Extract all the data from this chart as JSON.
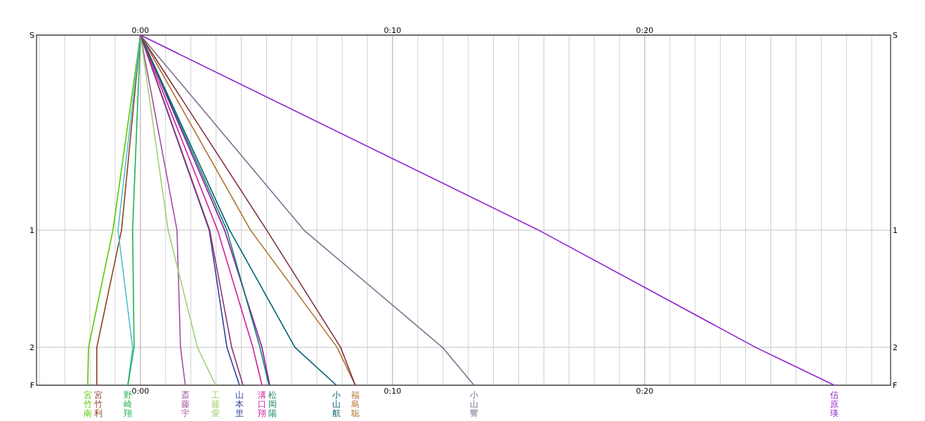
{
  "chart_data": {
    "type": "line",
    "marker": "none",
    "grid": true,
    "xlim": [
      -4.12,
      29.75
    ],
    "x2lim": [
      -4.12,
      29.75
    ],
    "ylim": [
      2.323,
      -0.665
    ],
    "y2lim": [
      2.323,
      -0.665
    ],
    "yticks": [
      {
        "value": -0.665,
        "label": "S"
      },
      1,
      2,
      {
        "value": 2.323,
        "label": "F"
      }
    ],
    "y2ticks": [
      {
        "value": -0.665,
        "label": "S"
      },
      1,
      2,
      {
        "value": 2.323,
        "label": "F"
      }
    ],
    "xticks": [
      {
        "value": -4,
        "label": null
      },
      {
        "value": -3,
        "label": null
      },
      {
        "value": -2,
        "label": null
      },
      {
        "value": -1,
        "label": null
      },
      {
        "value": 0,
        "label": "0:00"
      },
      {
        "value": 1,
        "label": null
      },
      {
        "value": 2,
        "label": null
      },
      {
        "value": 3,
        "label": null
      },
      {
        "value": 4,
        "label": null
      },
      {
        "value": 5,
        "label": null
      },
      {
        "value": 6,
        "label": null
      },
      {
        "value": 7,
        "label": null
      },
      {
        "value": 8,
        "label": null
      },
      {
        "value": 9,
        "label": null
      },
      {
        "value": 10,
        "label": "0:10"
      },
      {
        "value": 11,
        "label": null
      },
      {
        "value": 12,
        "label": null
      },
      {
        "value": 13,
        "label": null
      },
      {
        "value": 14,
        "label": null
      },
      {
        "value": 15,
        "label": null
      },
      {
        "value": 16,
        "label": null
      },
      {
        "value": 17,
        "label": null
      },
      {
        "value": 18,
        "label": null
      },
      {
        "value": 19,
        "label": null
      },
      {
        "value": 20,
        "label": "0:20"
      },
      {
        "value": 21,
        "label": null
      },
      {
        "value": 22,
        "label": null
      },
      {
        "value": 23,
        "label": null
      },
      {
        "value": 24,
        "label": null
      },
      {
        "value": 25,
        "label": null
      },
      {
        "value": 26,
        "label": null
      },
      {
        "value": 27,
        "label": null
      },
      {
        "value": 28,
        "label": null
      },
      {
        "value": 29,
        "label": null
      }
    ],
    "x2ticks": [
      {
        "value": 0,
        "label": "0:00"
      },
      {
        "value": 10,
        "label": "0:10"
      },
      {
        "value": 20,
        "label": "0:20"
      }
    ],
    "series": [
      {
        "name": "宮竹南",
        "color": "#55c800",
        "x": [
          0,
          -1.09,
          -2.06,
          -2.09
        ],
        "values": [
          -0.665,
          1,
          2,
          2.323
        ]
      },
      {
        "name": "宮竹利",
        "color": "#8b4020",
        "x": [
          0,
          -0.75,
          -1.73,
          -1.73
        ],
        "values": [
          -0.665,
          1,
          2,
          2.323
        ]
      },
      {
        "name": null,
        "color": "#50c0d0",
        "x": [
          0,
          -0.89,
          -0.31,
          -0.5
        ],
        "values": [
          -0.665,
          1,
          2,
          2.323
        ]
      },
      {
        "name": "野崎翔",
        "color": "#20b050",
        "x": [
          0,
          -0.31,
          -0.25,
          -0.5
        ],
        "values": [
          -0.665,
          1,
          2,
          2.323
        ]
      },
      {
        "name": "斎藤宇",
        "color": "#a050a0",
        "x": [
          0,
          1.45,
          1.59,
          1.78
        ],
        "values": [
          -0.665,
          1,
          2,
          2.323
        ]
      },
      {
        "name": "工藤愛",
        "color": "#a0d070",
        "x": [
          0,
          1.1,
          2.26,
          2.98
        ],
        "values": [
          -0.665,
          1,
          2,
          2.323
        ]
      },
      {
        "name": "山本里",
        "color": "#3040a0",
        "x": [
          0,
          2.73,
          3.43,
          3.93
        ],
        "values": [
          -0.665,
          1,
          2,
          2.323
        ]
      },
      {
        "name": null,
        "color": "#903070",
        "x": [
          0,
          2.75,
          3.62,
          4.07
        ],
        "values": [
          -0.665,
          1,
          2,
          2.323
        ]
      },
      {
        "name": "溝口翔",
        "color": "#d020a0",
        "x": [
          0,
          3.06,
          4.46,
          4.82
        ],
        "values": [
          -0.665,
          1,
          2,
          2.323
        ]
      },
      {
        "name": null,
        "color": "#9010b0",
        "x": [
          0,
          3.34,
          4.82,
          5.13
        ],
        "values": [
          -0.665,
          1,
          2,
          2.323
        ]
      },
      {
        "name": "松岡陽",
        "color": "#108060",
        "x": [
          0,
          3.43,
          4.74,
          5.1
        ],
        "values": [
          -0.665,
          1,
          2,
          2.323
        ]
      },
      {
        "name": "小山航",
        "color": "#006070",
        "x": [
          0,
          3.54,
          6.13,
          7.77
        ],
        "values": [
          -0.665,
          1,
          2,
          2.323
        ]
      },
      {
        "name": "福島聡",
        "color": "#b07030",
        "x": [
          0,
          4.37,
          7.8,
          8.52
        ],
        "values": [
          -0.665,
          1,
          2,
          2.323
        ]
      },
      {
        "name": null,
        "color": "#803040",
        "x": [
          0,
          5.01,
          7.94,
          8.52
        ],
        "values": [
          -0.665,
          1,
          2,
          2.323
        ]
      },
      {
        "name": "小山響",
        "color": "#807090",
        "x": [
          0,
          6.49,
          11.98,
          13.23
        ],
        "values": [
          -0.665,
          1,
          2,
          2.323
        ]
      },
      {
        "name": "信原瑛",
        "color": "#9020d0",
        "x": [
          0,
          15.8,
          24.4,
          27.52
        ],
        "values": [
          -0.665,
          1,
          2,
          2.323
        ]
      }
    ]
  }
}
